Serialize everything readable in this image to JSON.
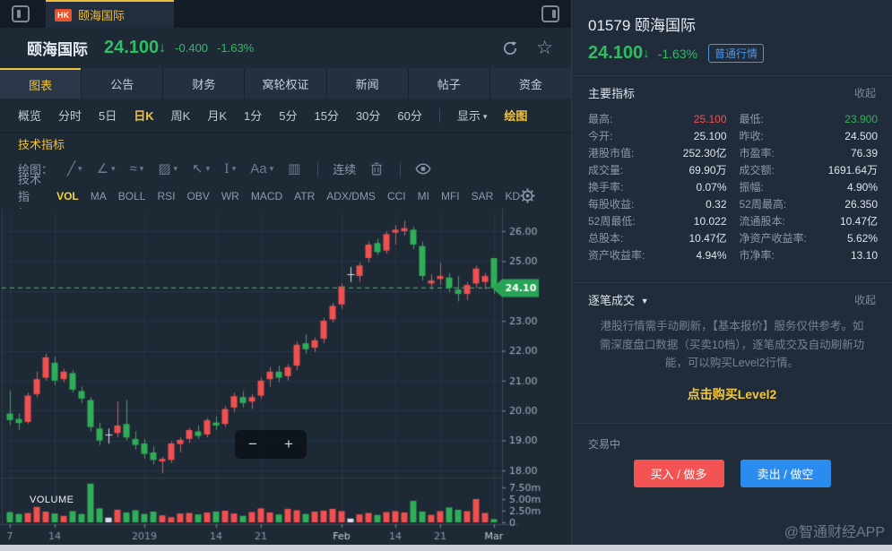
{
  "window": {
    "market": "HK",
    "title": "颐海国际"
  },
  "header": {
    "name": "颐海国际",
    "price": "24.100",
    "arrow": "↓",
    "change": "-0.400",
    "change_pct": "-1.63%"
  },
  "main_tabs": {
    "items": [
      "图表",
      "公告",
      "财务",
      "窝轮权证",
      "新闻",
      "帖子",
      "资金"
    ],
    "active": 0
  },
  "period_tabs": {
    "items": [
      "概览",
      "分时",
      "5日",
      "日K",
      "周K",
      "月K",
      "1分",
      "5分",
      "15分",
      "30分",
      "60分"
    ],
    "active": 3,
    "display_label": "显示",
    "draw_label": "绘图"
  },
  "tech_link": "技术指标",
  "draw_toolbar": {
    "label": "绘图：",
    "tools": [
      {
        "name": "line-tool",
        "glyph": "╱",
        "caret": true
      },
      {
        "name": "polyline-tool",
        "glyph": "∠",
        "caret": true
      },
      {
        "name": "wave-tool",
        "glyph": "≈",
        "caret": true
      },
      {
        "name": "channel-tool",
        "glyph": "▨",
        "caret": true
      },
      {
        "name": "arrow-tool",
        "glyph": "↖",
        "caret": true
      },
      {
        "name": "text-cursor-tool",
        "glyph": "I",
        "caret": true
      },
      {
        "name": "font-tool",
        "glyph": "Aa",
        "caret": true
      },
      {
        "name": "bars-tool",
        "glyph": "▥",
        "caret": false
      }
    ],
    "continuous_label": "连续"
  },
  "indicator_bar": {
    "label": "技术指标：",
    "items": [
      "VOL",
      "MA",
      "BOLL",
      "RSI",
      "OBV",
      "WR",
      "MACD",
      "ATR",
      "ADX/DMS",
      "CCI",
      "MI",
      "MFI",
      "SAR",
      "KD"
    ],
    "active": 0
  },
  "chart_data": {
    "type": "candlestick+volume",
    "volume_label": "VOLUME",
    "up_color": "#f0504f",
    "down_color": "#2fae58",
    "doji_color": "#d9e0ea",
    "current_price": "24.10",
    "current_price_value": 24.1,
    "price_ticks": [
      "26.00",
      "25.00",
      "23.00",
      "22.00",
      "21.00",
      "20.00",
      "19.00",
      "18.00"
    ],
    "price_tick_values": [
      26,
      25,
      23,
      22,
      21,
      20,
      19,
      18
    ],
    "grid_prices": [
      26,
      25,
      24,
      23,
      22,
      21,
      20,
      19,
      18
    ],
    "ylim": [
      17.8,
      26.7
    ],
    "volume_ticks": [
      "7.50m",
      "5.00m",
      "2.50m",
      "0"
    ],
    "volume_tick_values": [
      7.5,
      5.0,
      2.5,
      0
    ],
    "x_ticks": [
      [
        0,
        "7"
      ],
      [
        5,
        "14"
      ],
      [
        15,
        "2019"
      ],
      [
        23,
        "14"
      ],
      [
        28,
        "21"
      ],
      [
        37,
        "Feb"
      ],
      [
        43,
        "14"
      ],
      [
        48,
        "21"
      ],
      [
        54,
        "Mar"
      ]
    ],
    "candle_format": [
      "date",
      "open",
      "high",
      "low",
      "close",
      "volume_m"
    ],
    "candles": [
      [
        "12/07",
        19.9,
        20.65,
        19.5,
        19.68,
        2.2
      ],
      [
        "12/10",
        19.72,
        19.9,
        19.35,
        19.58,
        1.8
      ],
      [
        "12/11",
        19.62,
        20.6,
        19.55,
        20.5,
        2.0
      ],
      [
        "12/12",
        20.55,
        21.3,
        20.45,
        21.05,
        3.3
      ],
      [
        "12/13",
        21.1,
        21.9,
        21.0,
        21.78,
        2.3
      ],
      [
        "12/14",
        21.6,
        21.8,
        20.85,
        21.0,
        1.9
      ],
      [
        "12/17",
        21.05,
        21.4,
        20.95,
        21.3,
        1.4
      ],
      [
        "12/18",
        21.25,
        21.35,
        20.6,
        20.7,
        2.4
      ],
      [
        "12/19",
        20.65,
        20.8,
        20.25,
        20.4,
        1.8
      ],
      [
        "12/20",
        20.35,
        20.45,
        19.3,
        19.45,
        8.3
      ],
      [
        "12/21",
        19.4,
        19.6,
        18.85,
        19.0,
        3.0
      ],
      [
        "12/24",
        19.2,
        19.4,
        18.9,
        19.2,
        1.0
      ],
      [
        "12/27",
        19.25,
        20.3,
        19.1,
        19.5,
        2.7
      ],
      [
        "12/28",
        19.55,
        20.35,
        19.0,
        19.1,
        2.1
      ],
      [
        "12/31",
        19.05,
        19.3,
        18.7,
        18.85,
        2.6
      ],
      [
        "01/02",
        18.9,
        19.05,
        18.4,
        18.55,
        1.8
      ],
      [
        "01/03",
        18.6,
        18.8,
        18.2,
        18.35,
        2.3
      ],
      [
        "01/04",
        18.3,
        18.45,
        17.9,
        18.38,
        1.5
      ],
      [
        "01/07",
        18.35,
        18.98,
        18.25,
        18.9,
        1.1
      ],
      [
        "01/08",
        18.88,
        19.1,
        18.6,
        19.02,
        1.9
      ],
      [
        "01/09",
        19.05,
        19.42,
        18.92,
        19.35,
        2.0
      ],
      [
        "01/10",
        19.3,
        19.5,
        19.05,
        19.15,
        1.7
      ],
      [
        "01/11",
        19.2,
        19.75,
        19.1,
        19.68,
        2.1
      ],
      [
        "01/14",
        19.6,
        19.8,
        19.35,
        19.5,
        2.3
      ],
      [
        "01/15",
        19.55,
        20.15,
        19.45,
        20.05,
        2.5
      ],
      [
        "01/16",
        20.1,
        20.6,
        19.95,
        20.48,
        1.9
      ],
      [
        "01/17",
        20.45,
        20.65,
        20.1,
        20.25,
        1.4
      ],
      [
        "01/18",
        20.3,
        20.55,
        20.05,
        20.45,
        2.2
      ],
      [
        "01/21",
        20.5,
        21.1,
        20.4,
        21.0,
        3.0
      ],
      [
        "01/22",
        21.05,
        21.45,
        20.8,
        21.3,
        2.1
      ],
      [
        "01/23",
        21.3,
        21.5,
        20.95,
        21.1,
        1.7
      ],
      [
        "01/24",
        21.15,
        21.55,
        21.0,
        21.45,
        2.9
      ],
      [
        "01/25",
        21.5,
        22.3,
        21.35,
        22.2,
        2.6
      ],
      [
        "01/28",
        22.25,
        22.55,
        21.9,
        22.05,
        1.8
      ],
      [
        "01/29",
        22.1,
        22.45,
        21.95,
        22.35,
        2.3
      ],
      [
        "01/30",
        22.4,
        23.1,
        22.25,
        23.0,
        2.5
      ],
      [
        "01/31",
        23.05,
        23.6,
        22.95,
        23.5,
        2.9
      ],
      [
        "02/01",
        23.55,
        24.25,
        23.4,
        24.15,
        2.4
      ],
      [
        "02/04",
        24.55,
        24.8,
        24.3,
        24.55,
        0.8
      ],
      [
        "02/08",
        24.5,
        24.95,
        24.3,
        24.85,
        1.7
      ],
      [
        "02/11",
        25.1,
        25.65,
        24.95,
        25.55,
        2.0
      ],
      [
        "02/12",
        25.6,
        25.75,
        25.2,
        25.3,
        1.6
      ],
      [
        "02/13",
        25.35,
        26.0,
        25.25,
        25.9,
        2.2
      ],
      [
        "02/14",
        25.95,
        26.2,
        25.55,
        26.05,
        2.4
      ],
      [
        "02/15",
        26.0,
        26.35,
        25.85,
        26.1,
        2.1
      ],
      [
        "02/18",
        26.05,
        26.15,
        25.4,
        25.55,
        4.6
      ],
      [
        "02/19",
        25.5,
        25.65,
        24.35,
        24.5,
        2.3
      ],
      [
        "02/20",
        24.25,
        24.55,
        24.05,
        24.35,
        1.6
      ],
      [
        "02/21",
        24.4,
        24.95,
        24.2,
        24.5,
        2.4
      ],
      [
        "02/22",
        24.45,
        24.6,
        23.95,
        24.1,
        3.2
      ],
      [
        "02/25",
        24.05,
        24.5,
        23.65,
        23.9,
        2.7
      ],
      [
        "02/26",
        23.9,
        24.3,
        23.7,
        24.2,
        2.4
      ],
      [
        "02/27",
        24.25,
        24.85,
        24.1,
        24.75,
        5.0
      ],
      [
        "02/28",
        24.3,
        24.6,
        24.05,
        24.5,
        2.0
      ],
      [
        "03/01",
        25.1,
        25.1,
        23.9,
        24.1,
        0.7
      ]
    ]
  },
  "right_panel": {
    "code_title": "01579 颐海国际",
    "price": "24.100",
    "arrow": "↓",
    "change_pct": "-1.63%",
    "quote_badge": "普通行情",
    "main_indicators_title": "主要指标",
    "collapse_label": "收起",
    "stats": [
      {
        "label": "最高:",
        "value": "25.100",
        "color": "red"
      },
      {
        "label": "最低:",
        "value": "23.900",
        "color": "green"
      },
      {
        "label": "今开:",
        "value": "25.100",
        "color": ""
      },
      {
        "label": "昨收:",
        "value": "24.500",
        "color": ""
      },
      {
        "label": "港股市值:",
        "value": "252.30亿",
        "color": ""
      },
      {
        "label": "市盈率:",
        "value": "76.39",
        "color": ""
      },
      {
        "label": "成交量:",
        "value": "69.90万",
        "color": ""
      },
      {
        "label": "成交额:",
        "value": "1691.64万",
        "color": ""
      },
      {
        "label": "换手率:",
        "value": "0.07%",
        "color": ""
      },
      {
        "label": "振幅:",
        "value": "4.90%",
        "color": ""
      },
      {
        "label": "每股收益:",
        "value": "0.32",
        "color": ""
      },
      {
        "label": "52周最高:",
        "value": "26.350",
        "color": ""
      },
      {
        "label": "52周最低:",
        "value": "10.022",
        "color": ""
      },
      {
        "label": "流通股本:",
        "value": "10.47亿",
        "color": ""
      },
      {
        "label": "总股本:",
        "value": "10.47亿",
        "color": ""
      },
      {
        "label": "净资产收益率:",
        "value": "5.62%",
        "color": ""
      },
      {
        "label": "资产收益率:",
        "value": "4.94%",
        "color": ""
      },
      {
        "label": "市净率:",
        "value": "13.10",
        "color": ""
      }
    ],
    "trade_ticks_title": "逐笔成交",
    "collapse_label2": "收起",
    "notice": "港股行情需手动刷新，【基本报价】服务仅供参考。如需深度盘口数据（买卖10档），逐笔成交及自动刷新功能，可以购买Level2行情。",
    "buy_level2_link": "点击购买Level2",
    "trading_status": "交易中",
    "buy_button": "买入 / 做多",
    "sell_button": "卖出 / 做空"
  },
  "watermark": "@智通财经APP",
  "zoom_controls": {
    "minus": "−",
    "plus": "+"
  }
}
